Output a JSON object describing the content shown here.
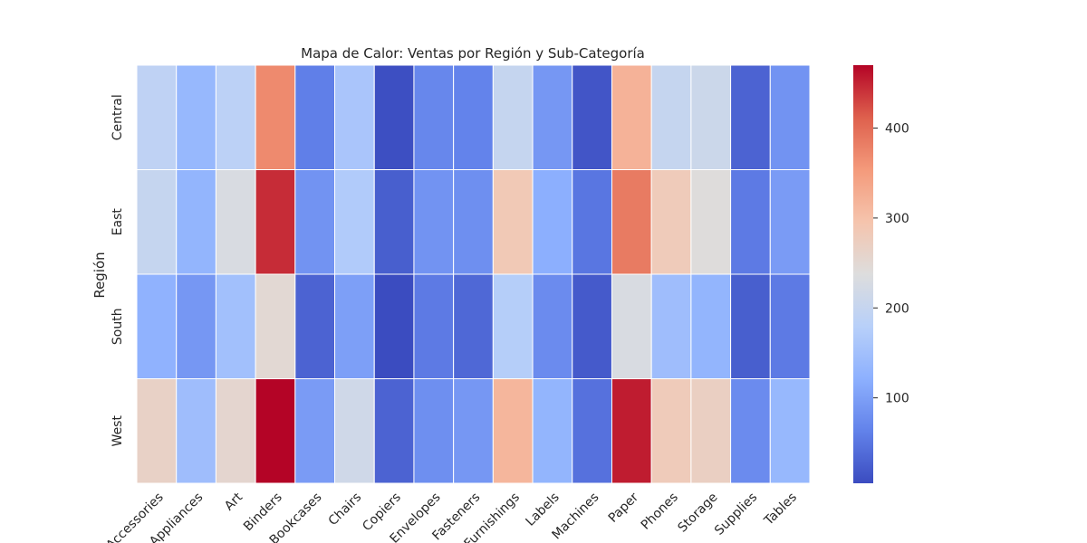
{
  "chart_data": {
    "type": "heatmap",
    "title": "Mapa de Calor: Ventas por Región y Sub-Categoría",
    "xlabel": "",
    "ylabel": "Región",
    "x_categories": [
      "Accessories",
      "Appliances",
      "Art",
      "Binders",
      "Bookcases",
      "Chairs",
      "Copiers",
      "Envelopes",
      "Fasteners",
      "Furnishings",
      "Labels",
      "Machines",
      "Paper",
      "Phones",
      "Storage",
      "Supplies",
      "Tables"
    ],
    "y_categories": [
      "Central",
      "East",
      "South",
      "West"
    ],
    "values": [
      [
        190,
        135,
        185,
        370,
        60,
        160,
        8,
        70,
        65,
        200,
        90,
        15,
        320,
        200,
        210,
        30,
        85
      ],
      [
        200,
        130,
        230,
        445,
        85,
        170,
        25,
        85,
        80,
        285,
        120,
        50,
        385,
        280,
        240,
        55,
        95
      ],
      [
        125,
        90,
        150,
        250,
        30,
        100,
        5,
        55,
        35,
        175,
        75,
        20,
        230,
        145,
        130,
        25,
        55
      ],
      [
        265,
        145,
        255,
        470,
        95,
        215,
        30,
        80,
        90,
        315,
        130,
        45,
        455,
        280,
        270,
        75,
        135
      ]
    ],
    "colormap": "coolwarm",
    "colorbar": {
      "min": 5,
      "max": 470,
      "ticks": [
        100,
        200,
        300,
        400
      ]
    },
    "gridlines": "white cell borders"
  }
}
